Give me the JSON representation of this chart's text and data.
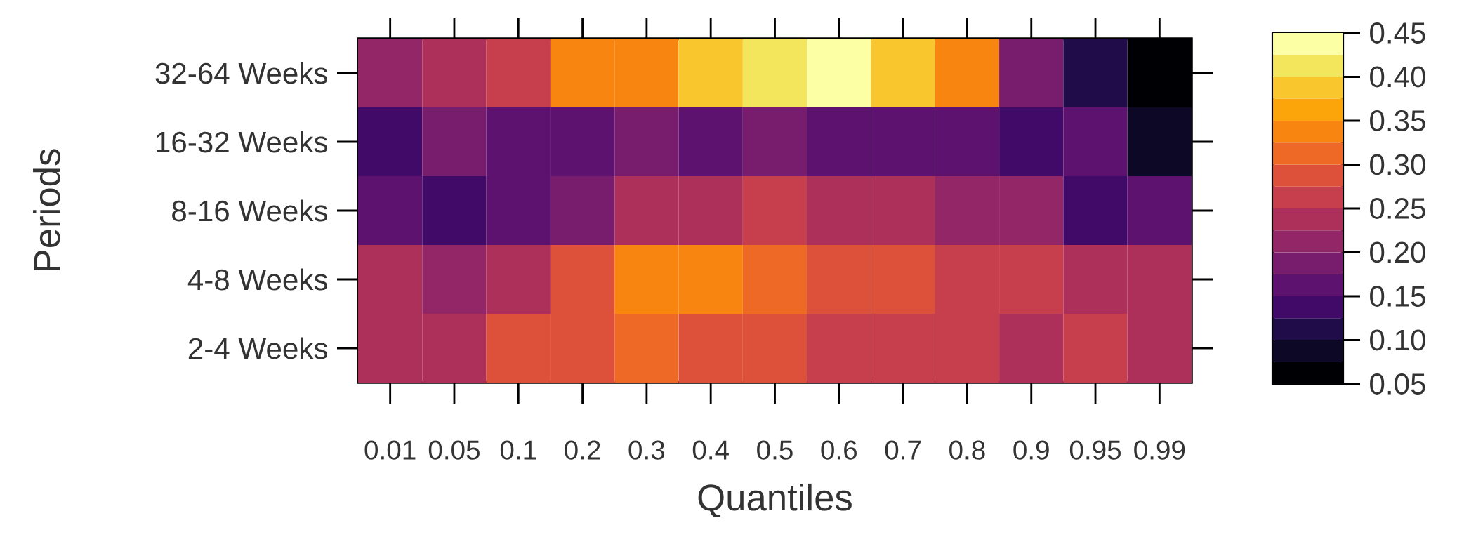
{
  "chart_data": {
    "type": "heatmap",
    "xlabel": "Quantiles",
    "ylabel": "Periods",
    "categories": [
      "0.01",
      "0.05",
      "0.1",
      "0.2",
      "0.3",
      "0.4",
      "0.5",
      "0.6",
      "0.7",
      "0.8",
      "0.9",
      "0.95",
      "0.99"
    ],
    "y_categories": [
      "32-64 Weeks",
      "16-32 Weeks",
      "8-16 Weeks",
      "4-8 Weeks",
      "2-4 Weeks"
    ],
    "cells": [
      [
        0.21,
        0.24,
        0.26,
        0.34,
        0.34,
        0.39,
        0.41,
        0.44,
        0.39,
        0.34,
        0.19,
        0.11,
        0.06
      ],
      [
        0.14,
        0.19,
        0.16,
        0.16,
        0.19,
        0.16,
        0.19,
        0.16,
        0.16,
        0.16,
        0.14,
        0.16,
        0.09
      ],
      [
        0.16,
        0.14,
        0.16,
        0.19,
        0.24,
        0.24,
        0.26,
        0.24,
        0.24,
        0.21,
        0.21,
        0.14,
        0.16
      ],
      [
        0.24,
        0.21,
        0.24,
        0.29,
        0.34,
        0.34,
        0.31,
        0.29,
        0.29,
        0.26,
        0.26,
        0.24,
        0.24
      ],
      [
        0.24,
        0.24,
        0.29,
        0.29,
        0.31,
        0.29,
        0.29,
        0.26,
        0.26,
        0.26,
        0.24,
        0.26,
        0.24
      ]
    ],
    "clim": [
      0.05,
      0.45
    ],
    "cticks": [
      0.05,
      {
        "value": 0.1,
        "label": "0.10"
      },
      0.15,
      {
        "value": 0.2,
        "label": "0.20"
      },
      0.25,
      {
        "value": 0.3,
        "label": "0.30"
      },
      0.35,
      {
        "value": 0.4,
        "label": "0.40"
      },
      0.45
    ],
    "colors": [
      "#000004",
      "#0d0826",
      "#1f0c48",
      "#420a68",
      "#5c126e",
      "#781c6d",
      "#932667",
      "#ad305a",
      "#c73e4c",
      "#dd513a",
      "#ed6925",
      "#f8850f",
      "#fca50a",
      "#fac62d",
      "#f3e55c",
      "#fcffa4"
    ]
  }
}
